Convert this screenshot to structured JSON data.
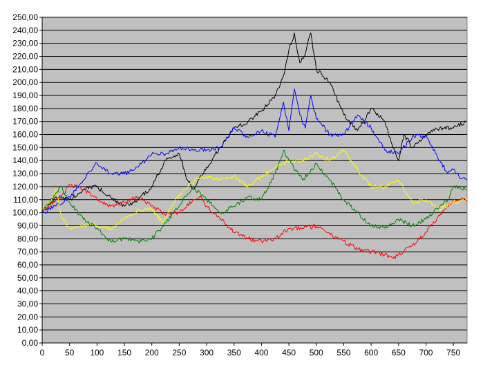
{
  "chart_data": {
    "type": "line",
    "title": "",
    "xlabel": "",
    "ylabel": "",
    "xlim": [
      0,
      775
    ],
    "ylim": [
      0,
      250
    ],
    "x_ticks": [
      0,
      50,
      100,
      150,
      200,
      250,
      300,
      350,
      400,
      450,
      500,
      550,
      600,
      650,
      700,
      750
    ],
    "x_tick_labels": [
      "0",
      "50",
      "100",
      "150",
      "200",
      "250",
      "300",
      "350",
      "400",
      "450",
      "500",
      "550",
      "600",
      "650",
      "700",
      "750"
    ],
    "y_ticks": [
      0,
      10,
      20,
      30,
      40,
      50,
      60,
      70,
      80,
      90,
      100,
      110,
      120,
      130,
      140,
      150,
      160,
      170,
      180,
      190,
      200,
      210,
      220,
      230,
      240,
      250
    ],
    "y_tick_labels": [
      "0,00",
      "10,00",
      "20,00",
      "30,00",
      "40,00",
      "50,00",
      "60,00",
      "70,00",
      "80,00",
      "90,00",
      "100,00",
      "110,00",
      "120,00",
      "130,00",
      "140,00",
      "150,00",
      "160,00",
      "170,00",
      "180,00",
      "190,00",
      "200,00",
      "210,00",
      "220,00",
      "230,00",
      "240,00",
      "250,00"
    ],
    "grid": true,
    "legend": "none",
    "plot_background": "#c0c0c0",
    "series": [
      {
        "color": "#000000",
        "x": [
          0,
          25,
          50,
          75,
          100,
          125,
          150,
          175,
          200,
          225,
          250,
          265,
          275,
          300,
          325,
          350,
          375,
          400,
          425,
          440,
          450,
          460,
          470,
          480,
          490,
          500,
          525,
          550,
          575,
          600,
          625,
          640,
          650,
          660,
          675,
          700,
          725,
          750,
          775
        ],
        "y": [
          100,
          112,
          110,
          118,
          120,
          112,
          105,
          110,
          120,
          140,
          145,
          125,
          118,
          135,
          150,
          165,
          170,
          178,
          190,
          205,
          225,
          238,
          215,
          222,
          238,
          210,
          200,
          175,
          163,
          180,
          170,
          150,
          140,
          160,
          150,
          160,
          165,
          165,
          170
        ]
      },
      {
        "color": "#0000ff",
        "x": [
          0,
          25,
          50,
          75,
          100,
          125,
          150,
          175,
          200,
          225,
          250,
          275,
          300,
          325,
          350,
          375,
          400,
          425,
          440,
          450,
          460,
          470,
          480,
          490,
          500,
          525,
          550,
          575,
          600,
          625,
          650,
          675,
          700,
          725,
          740,
          750,
          760,
          775
        ],
        "y": [
          100,
          105,
          112,
          125,
          138,
          130,
          130,
          135,
          145,
          145,
          150,
          148,
          148,
          150,
          165,
          158,
          163,
          158,
          185,
          163,
          195,
          175,
          165,
          190,
          172,
          160,
          160,
          175,
          165,
          148,
          145,
          158,
          160,
          140,
          130,
          133,
          128,
          125
        ]
      },
      {
        "color": "#ff0000",
        "x": [
          0,
          25,
          40,
          50,
          75,
          100,
          125,
          150,
          175,
          200,
          225,
          250,
          275,
          290,
          300,
          325,
          350,
          375,
          400,
          425,
          450,
          475,
          500,
          525,
          550,
          575,
          600,
          625,
          640,
          650,
          675,
          700,
          725,
          750,
          760,
          775
        ],
        "y": [
          100,
          110,
          115,
          122,
          118,
          110,
          105,
          108,
          112,
          105,
          98,
          100,
          110,
          112,
          105,
          95,
          85,
          80,
          78,
          80,
          88,
          88,
          90,
          83,
          78,
          72,
          70,
          68,
          65,
          68,
          75,
          85,
          98,
          110,
          110,
          110
        ]
      },
      {
        "color": "#ffff00",
        "x": [
          0,
          15,
          25,
          35,
          50,
          75,
          100,
          125,
          150,
          175,
          200,
          220,
          240,
          260,
          280,
          300,
          325,
          350,
          375,
          400,
          425,
          450,
          475,
          500,
          525,
          550,
          575,
          600,
          625,
          650,
          675,
          700,
          725,
          750,
          775
        ],
        "y": [
          102,
          108,
          118,
          98,
          88,
          90,
          90,
          88,
          95,
          102,
          103,
          92,
          108,
          118,
          125,
          128,
          125,
          128,
          120,
          128,
          135,
          140,
          140,
          145,
          140,
          148,
          133,
          120,
          120,
          125,
          108,
          110,
          103,
          108,
          110
        ]
      },
      {
        "color": "#008000",
        "x": [
          0,
          25,
          35,
          50,
          75,
          100,
          125,
          150,
          175,
          200,
          225,
          250,
          275,
          300,
          325,
          350,
          375,
          400,
          425,
          440,
          450,
          475,
          500,
          525,
          550,
          575,
          600,
          625,
          650,
          675,
          700,
          725,
          740,
          750,
          775
        ],
        "y": [
          100,
          115,
          120,
          108,
          95,
          88,
          78,
          80,
          78,
          80,
          92,
          105,
          120,
          110,
          100,
          105,
          112,
          110,
          130,
          148,
          140,
          125,
          138,
          125,
          110,
          100,
          90,
          88,
          95,
          90,
          95,
          105,
          110,
          120,
          118
        ]
      }
    ]
  }
}
